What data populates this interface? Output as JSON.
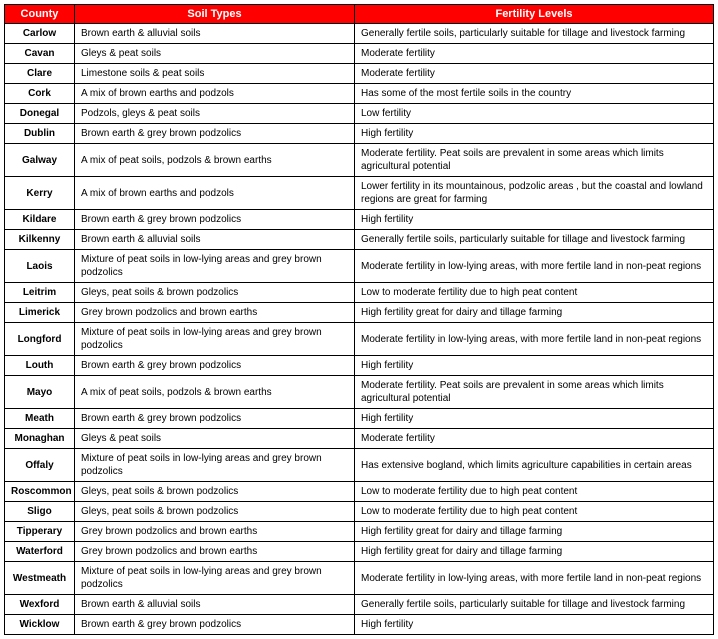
{
  "table": {
    "headers": {
      "county": "County",
      "soil": "Soil Types",
      "fertility": "Fertility Levels"
    },
    "header_bg": "#ff0000",
    "header_fg": "#ffffff",
    "border_color": "#000000",
    "rows": [
      {
        "county": "Carlow",
        "soil": "Brown earth & alluvial soils",
        "fertility": "Generally fertile soils, particularly suitable for tillage and livestock farming"
      },
      {
        "county": "Cavan",
        "soil": "Gleys & peat soils",
        "fertility": "Moderate fertility"
      },
      {
        "county": "Clare",
        "soil": "Limestone soils & peat soils",
        "fertility": "Moderate fertility"
      },
      {
        "county": "Cork",
        "soil": "A mix of brown earths and podzols",
        "fertility": "Has some of the most fertile soils in the country"
      },
      {
        "county": "Donegal",
        "soil": "Podzols, gleys & peat soils",
        "fertility": "Low fertility"
      },
      {
        "county": "Dublin",
        "soil": "Brown earth & grey brown podzolics",
        "fertility": "High fertility"
      },
      {
        "county": "Galway",
        "soil": "A mix of peat soils, podzols & brown earths",
        "fertility": "Moderate fertility. Peat soils are prevalent in some areas which limits agricultural potential"
      },
      {
        "county": "Kerry",
        "soil": "A mix of brown earths and podzols",
        "fertility": "Lower fertility in its mountainous, podzolic areas , but the coastal and lowland regions are great for farming"
      },
      {
        "county": "Kildare",
        "soil": "Brown earth & grey brown podzolics",
        "fertility": "High fertility"
      },
      {
        "county": "Kilkenny",
        "soil": "Brown earth & alluvial soils",
        "fertility": "Generally fertile soils, particularly suitable for tillage and livestock farming"
      },
      {
        "county": "Laois",
        "soil": "Mixture of peat soils in low-lying areas and grey brown podzolics",
        "fertility": "Moderate fertility in low-lying areas, with more fertile land in non-peat regions"
      },
      {
        "county": "Leitrim",
        "soil": "Gleys, peat soils & brown podzolics",
        "fertility": "Low to moderate fertility due to high peat content"
      },
      {
        "county": "Limerick",
        "soil": "Grey brown podzolics and brown earths",
        "fertility": "High fertility great for dairy and tillage farming"
      },
      {
        "county": "Longford",
        "soil": "Mixture of peat soils in low-lying areas and grey brown podzolics",
        "fertility": "Moderate fertility in low-lying areas, with more fertile land in non-peat regions"
      },
      {
        "county": "Louth",
        "soil": "Brown earth & grey brown podzolics",
        "fertility": "High fertility"
      },
      {
        "county": "Mayo",
        "soil": "A mix of peat soils, podzols & brown earths",
        "fertility": "Moderate fertility. Peat soils are prevalent in some areas which limits agricultural potential"
      },
      {
        "county": "Meath",
        "soil": "Brown earth & grey brown podzolics",
        "fertility": "High fertility"
      },
      {
        "county": "Monaghan",
        "soil": "Gleys & peat soils",
        "fertility": "Moderate fertility"
      },
      {
        "county": "Offaly",
        "soil": "Mixture of peat soils in low-lying areas and grey brown podzolics",
        "fertility": "Has extensive bogland, which limits agriculture capabilities in certain areas"
      },
      {
        "county": "Roscommon",
        "soil": "Gleys, peat soils & brown podzolics",
        "fertility": "Low to moderate fertility due to high peat content"
      },
      {
        "county": "Sligo",
        "soil": "Gleys, peat soils & brown podzolics",
        "fertility": "Low to moderate fertility due to high peat content"
      },
      {
        "county": "Tipperary",
        "soil": "Grey brown podzolics and brown earths",
        "fertility": "High fertility great for dairy and tillage farming"
      },
      {
        "county": "Waterford",
        "soil": "Grey brown podzolics and brown earths",
        "fertility": "High fertility great for dairy and tillage farming"
      },
      {
        "county": "Westmeath",
        "soil": "Mixture of peat soils in low-lying areas and grey brown podzolics",
        "fertility": "Moderate fertility in low-lying areas, with more fertile land in non-peat regions"
      },
      {
        "county": "Wexford",
        "soil": "Brown earth & alluvial soils",
        "fertility": "Generally fertile soils, particularly suitable for tillage and livestock farming"
      },
      {
        "county": "Wicklow",
        "soil": "Brown earth & grey brown podzolics",
        "fertility": "High fertility"
      }
    ]
  }
}
